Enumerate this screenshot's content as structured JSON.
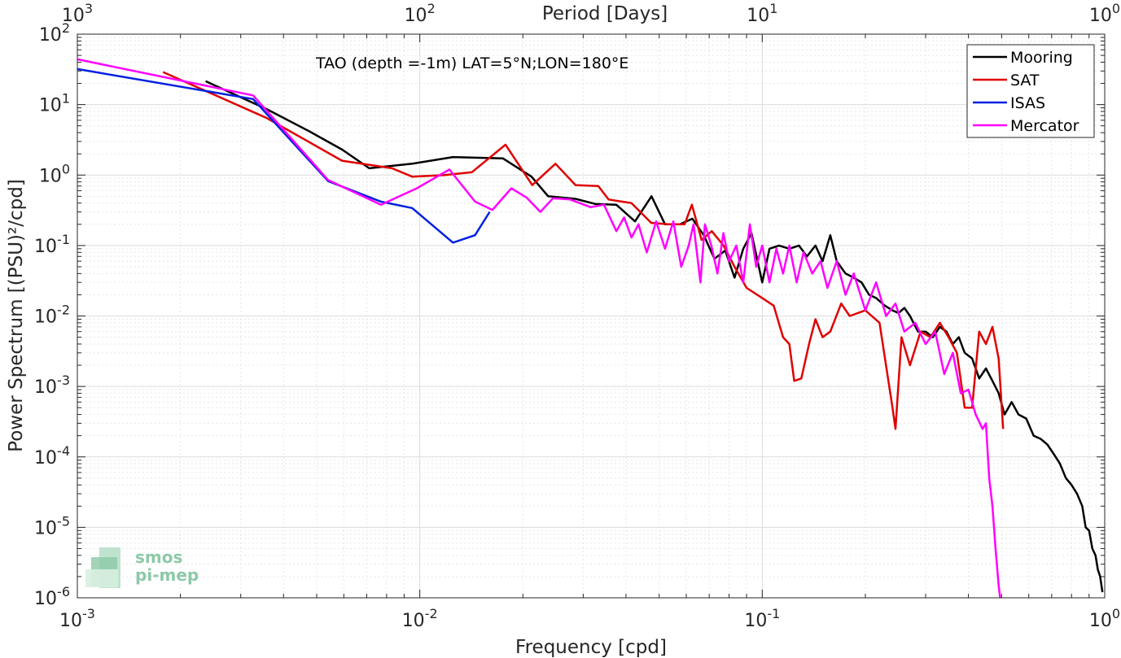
{
  "chart_data": {
    "type": "line",
    "title": "TAO (depth =-1m) LAT=5°N;LON=180°E",
    "xlabel": "Frequency [cpd]",
    "ylabel": "Power Spectrum [(PSU)²/cpd]",
    "x2label": "Period [Days]",
    "xscale": "log",
    "yscale": "log",
    "xlim": [
      0.001,
      1
    ],
    "ylim": [
      1e-06,
      100
    ],
    "grid": true,
    "legend_position": "top-right",
    "x_ticks": [
      {
        "base": "10",
        "exp": "-3"
      },
      {
        "base": "10",
        "exp": "-2"
      },
      {
        "base": "10",
        "exp": "-1"
      },
      {
        "base": "10",
        "exp": "0"
      }
    ],
    "x2_ticks": [
      {
        "base": "10",
        "exp": "3"
      },
      {
        "base": "10",
        "exp": "2"
      },
      {
        "base": "10",
        "exp": "1"
      },
      {
        "base": "10",
        "exp": "0"
      }
    ],
    "y_ticks": [
      {
        "base": "10",
        "exp": "2"
      },
      {
        "base": "10",
        "exp": "1"
      },
      {
        "base": "10",
        "exp": "0"
      },
      {
        "base": "10",
        "exp": "-1"
      },
      {
        "base": "10",
        "exp": "-2"
      },
      {
        "base": "10",
        "exp": "-3"
      },
      {
        "base": "10",
        "exp": "-4"
      },
      {
        "base": "10",
        "exp": "-5"
      },
      {
        "base": "10",
        "exp": "-6"
      }
    ],
    "series": [
      {
        "name": "Mooring",
        "color": "#000000",
        "points": [
          [
            0.00237,
            21.5
          ],
          [
            0.00356,
            8.7
          ],
          [
            0.00475,
            4.2
          ],
          [
            0.00593,
            2.3
          ],
          [
            0.00712,
            1.25
          ],
          [
            0.0095,
            1.45
          ],
          [
            0.0125,
            1.8
          ],
          [
            0.0175,
            1.72
          ],
          [
            0.0212,
            0.95
          ],
          [
            0.0237,
            0.5
          ],
          [
            0.0285,
            0.46
          ],
          [
            0.0325,
            0.39
          ],
          [
            0.0375,
            0.38
          ],
          [
            0.0425,
            0.22
          ],
          [
            0.0475,
            0.5
          ],
          [
            0.052,
            0.2
          ],
          [
            0.0575,
            0.2
          ],
          [
            0.0625,
            0.24
          ],
          [
            0.0675,
            0.14
          ],
          [
            0.0725,
            0.065
          ],
          [
            0.078,
            0.085
          ],
          [
            0.083,
            0.035
          ],
          [
            0.088,
            0.09
          ],
          [
            0.093,
            0.15
          ],
          [
            0.1,
            0.03
          ],
          [
            0.105,
            0.09
          ],
          [
            0.112,
            0.1
          ],
          [
            0.12,
            0.09
          ],
          [
            0.128,
            0.1
          ],
          [
            0.135,
            0.07
          ],
          [
            0.143,
            0.1
          ],
          [
            0.15,
            0.06
          ],
          [
            0.158,
            0.14
          ],
          [
            0.165,
            0.06
          ],
          [
            0.175,
            0.04
          ],
          [
            0.185,
            0.035
          ],
          [
            0.195,
            0.03
          ],
          [
            0.205,
            0.02
          ],
          [
            0.215,
            0.018
          ],
          [
            0.228,
            0.014
          ],
          [
            0.24,
            0.012
          ],
          [
            0.25,
            0.011
          ],
          [
            0.26,
            0.013
          ],
          [
            0.27,
            0.01
          ],
          [
            0.285,
            0.006
          ],
          [
            0.3,
            0.006
          ],
          [
            0.315,
            0.005
          ],
          [
            0.33,
            0.007
          ],
          [
            0.345,
            0.006
          ],
          [
            0.36,
            0.004
          ],
          [
            0.375,
            0.005
          ],
          [
            0.39,
            0.003
          ],
          [
            0.41,
            0.0025
          ],
          [
            0.43,
            0.0013
          ],
          [
            0.45,
            0.0018
          ],
          [
            0.47,
            0.0012
          ],
          [
            0.49,
            0.0008
          ],
          [
            0.51,
            0.0004
          ],
          [
            0.535,
            0.0006
          ],
          [
            0.56,
            0.0004
          ],
          [
            0.59,
            0.00035
          ],
          [
            0.62,
            0.0002
          ],
          [
            0.65,
            0.00018
          ],
          [
            0.68,
            0.00015
          ],
          [
            0.71,
            0.00011
          ],
          [
            0.74,
            8e-05
          ],
          [
            0.77,
            5e-05
          ],
          [
            0.8,
            4e-05
          ],
          [
            0.83,
            3e-05
          ],
          [
            0.86,
            2e-05
          ],
          [
            0.88,
            1e-05
          ],
          [
            0.9,
            9e-06
          ],
          [
            0.92,
            5e-06
          ],
          [
            0.94,
            4e-06
          ],
          [
            0.955,
            2.5e-06
          ],
          [
            0.97,
            2e-06
          ],
          [
            0.985,
            1.2e-06
          ]
        ]
      },
      {
        "name": "SAT",
        "color": "#e00000",
        "points": [
          [
            0.00178,
            29
          ],
          [
            0.00356,
            6.5
          ],
          [
            0.00593,
            1.6
          ],
          [
            0.0083,
            1.25
          ],
          [
            0.0095,
            0.95
          ],
          [
            0.0118,
            1.0
          ],
          [
            0.0142,
            1.1
          ],
          [
            0.0178,
            2.7
          ],
          [
            0.0213,
            0.72
          ],
          [
            0.0249,
            1.45
          ],
          [
            0.0285,
            0.72
          ],
          [
            0.0332,
            0.7
          ],
          [
            0.0356,
            0.45
          ],
          [
            0.0415,
            0.4
          ],
          [
            0.0474,
            0.21
          ],
          [
            0.0533,
            0.2
          ],
          [
            0.0593,
            0.2
          ],
          [
            0.0623,
            0.38
          ],
          [
            0.0665,
            0.12
          ],
          [
            0.0712,
            0.16
          ],
          [
            0.0771,
            0.1
          ],
          [
            0.083,
            0.05
          ],
          [
            0.09,
            0.025
          ],
          [
            0.1,
            0.018
          ],
          [
            0.108,
            0.014
          ],
          [
            0.115,
            0.005
          ],
          [
            0.12,
            0.004
          ],
          [
            0.124,
            0.0012
          ],
          [
            0.13,
            0.0013
          ],
          [
            0.137,
            0.004
          ],
          [
            0.143,
            0.009
          ],
          [
            0.15,
            0.005
          ],
          [
            0.158,
            0.006
          ],
          [
            0.17,
            0.015
          ],
          [
            0.18,
            0.01
          ],
          [
            0.2,
            0.012
          ],
          [
            0.22,
            0.008
          ],
          [
            0.24,
            0.0005
          ],
          [
            0.245,
            0.00025
          ],
          [
            0.255,
            0.005
          ],
          [
            0.27,
            0.002
          ],
          [
            0.29,
            0.006
          ],
          [
            0.31,
            0.005
          ],
          [
            0.33,
            0.008
          ],
          [
            0.35,
            0.005
          ],
          [
            0.37,
            0.003
          ],
          [
            0.39,
            0.0005
          ],
          [
            0.41,
            0.0005
          ],
          [
            0.43,
            0.006
          ],
          [
            0.45,
            0.004
          ],
          [
            0.47,
            0.007
          ],
          [
            0.49,
            0.0025
          ],
          [
            0.505,
            0.00025
          ]
        ]
      },
      {
        "name": "ISAS",
        "color": "#0020e0",
        "points": [
          [
            0.001,
            32
          ],
          [
            0.00326,
            12
          ],
          [
            0.0054,
            0.82
          ],
          [
            0.0077,
            0.42
          ],
          [
            0.0095,
            0.34
          ],
          [
            0.0125,
            0.11
          ],
          [
            0.0145,
            0.14
          ],
          [
            0.016,
            0.3
          ]
        ]
      },
      {
        "name": "Mercator",
        "color": "#ff00ff",
        "points": [
          [
            0.001,
            44
          ],
          [
            0.00326,
            13.5
          ],
          [
            0.0054,
            0.85
          ],
          [
            0.0077,
            0.38
          ],
          [
            0.0098,
            0.65
          ],
          [
            0.0122,
            1.2
          ],
          [
            0.0145,
            0.42
          ],
          [
            0.0163,
            0.32
          ],
          [
            0.0185,
            0.65
          ],
          [
            0.0205,
            0.48
          ],
          [
            0.0225,
            0.3
          ],
          [
            0.0245,
            0.47
          ],
          [
            0.0275,
            0.45
          ],
          [
            0.0315,
            0.35
          ],
          [
            0.0345,
            0.38
          ],
          [
            0.0375,
            0.16
          ],
          [
            0.0395,
            0.25
          ],
          [
            0.0415,
            0.13
          ],
          [
            0.0435,
            0.2
          ],
          [
            0.046,
            0.08
          ],
          [
            0.049,
            0.22
          ],
          [
            0.052,
            0.09
          ],
          [
            0.055,
            0.22
          ],
          [
            0.058,
            0.05
          ],
          [
            0.061,
            0.1
          ],
          [
            0.063,
            0.2
          ],
          [
            0.066,
            0.03
          ],
          [
            0.068,
            0.2
          ],
          [
            0.071,
            0.1
          ],
          [
            0.074,
            0.04
          ],
          [
            0.077,
            0.15
          ],
          [
            0.08,
            0.06
          ],
          [
            0.084,
            0.1
          ],
          [
            0.088,
            0.03
          ],
          [
            0.092,
            0.2
          ],
          [
            0.096,
            0.05
          ],
          [
            0.1,
            0.1
          ],
          [
            0.105,
            0.03
          ],
          [
            0.11,
            0.09
          ],
          [
            0.115,
            0.04
          ],
          [
            0.12,
            0.1
          ],
          [
            0.126,
            0.03
          ],
          [
            0.132,
            0.08
          ],
          [
            0.14,
            0.04
          ],
          [
            0.148,
            0.06
          ],
          [
            0.155,
            0.025
          ],
          [
            0.165,
            0.06
          ],
          [
            0.175,
            0.02
          ],
          [
            0.185,
            0.04
          ],
          [
            0.2,
            0.012
          ],
          [
            0.215,
            0.03
          ],
          [
            0.23,
            0.01
          ],
          [
            0.245,
            0.015
          ],
          [
            0.26,
            0.006
          ],
          [
            0.28,
            0.008
          ],
          [
            0.3,
            0.004
          ],
          [
            0.32,
            0.006
          ],
          [
            0.34,
            0.0015
          ],
          [
            0.36,
            0.003
          ],
          [
            0.38,
            0.0008
          ],
          [
            0.4,
            0.0009
          ],
          [
            0.42,
            0.0004
          ],
          [
            0.44,
            0.00025
          ],
          [
            0.45,
            0.0003
          ],
          [
            0.46,
            5e-05
          ],
          [
            0.47,
            2e-05
          ],
          [
            0.48,
            5e-06
          ],
          [
            0.49,
            1.5e-06
          ],
          [
            0.495,
            1e-06
          ]
        ]
      }
    ]
  },
  "logo": {
    "line1": "smos",
    "line2": "pi-mep"
  }
}
